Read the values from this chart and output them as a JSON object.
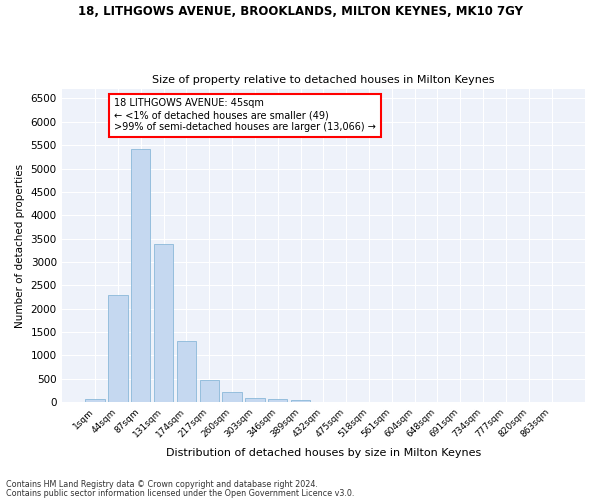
{
  "title1": "18, LITHGOWS AVENUE, BROOKLANDS, MILTON KEYNES, MK10 7GY",
  "title2": "Size of property relative to detached houses in Milton Keynes",
  "xlabel": "Distribution of detached houses by size in Milton Keynes",
  "ylabel": "Number of detached properties",
  "footnote1": "Contains HM Land Registry data © Crown copyright and database right 2024.",
  "footnote2": "Contains public sector information licensed under the Open Government Licence v3.0.",
  "annotation_line1": "18 LITHGOWS AVENUE: 45sqm",
  "annotation_line2": "← <1% of detached houses are smaller (49)",
  "annotation_line3": ">99% of semi-detached houses are larger (13,066) →",
  "bar_color": "#c5d8f0",
  "bar_edge_color": "#7bafd4",
  "categories": [
    "1sqm",
    "44sqm",
    "87sqm",
    "131sqm",
    "174sqm",
    "217sqm",
    "260sqm",
    "303sqm",
    "346sqm",
    "389sqm",
    "432sqm",
    "475sqm",
    "518sqm",
    "561sqm",
    "604sqm",
    "648sqm",
    "691sqm",
    "734sqm",
    "777sqm",
    "820sqm",
    "863sqm"
  ],
  "values": [
    70,
    2300,
    5420,
    3380,
    1300,
    475,
    215,
    100,
    65,
    45,
    0,
    0,
    0,
    0,
    0,
    0,
    0,
    0,
    0,
    0,
    0
  ],
  "ylim": [
    0,
    6700
  ],
  "yticks": [
    0,
    500,
    1000,
    1500,
    2000,
    2500,
    3000,
    3500,
    4000,
    4500,
    5000,
    5500,
    6000,
    6500
  ],
  "background_color": "#eef2fa",
  "grid_color": "#ffffff",
  "fig_bg": "#ffffff"
}
